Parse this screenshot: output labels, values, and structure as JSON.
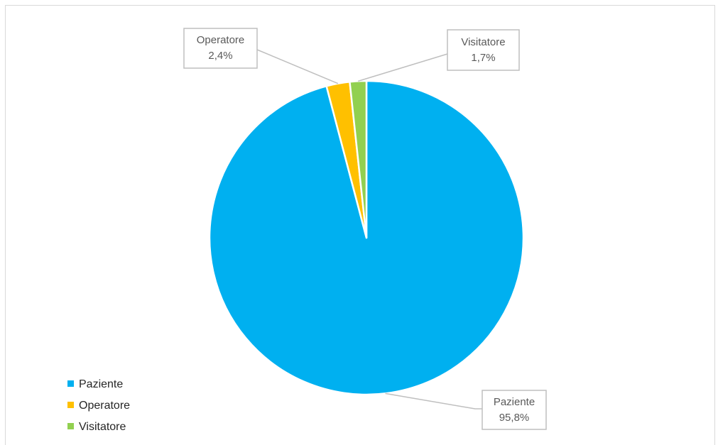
{
  "chart_data": {
    "type": "pie",
    "title": "",
    "slices": [
      {
        "name": "Paziente",
        "value": 95.8,
        "label": "95,8%",
        "color": "#00b0f0"
      },
      {
        "name": "Operatore",
        "value": 2.4,
        "label": "2,4%",
        "color": "#ffc000"
      },
      {
        "name": "Visitatore",
        "value": 1.7,
        "label": "1,7%",
        "color": "#92d050"
      }
    ],
    "legend": {
      "position": "bottom-left",
      "entries": [
        "Paziente",
        "Operatore",
        "Visitatore"
      ]
    }
  }
}
